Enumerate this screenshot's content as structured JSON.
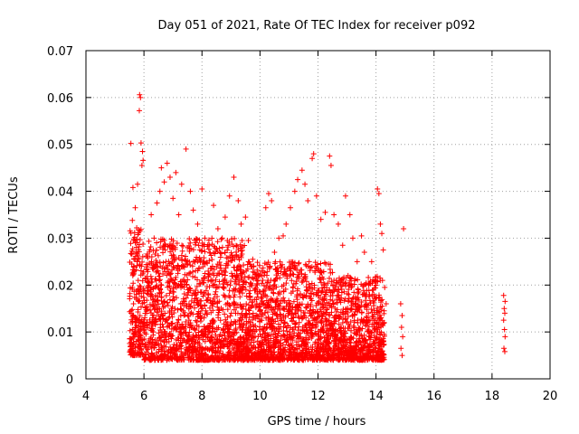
{
  "chart_data": {
    "type": "scatter",
    "title": "Day 051 of 2021, Rate Of TEC Index for receiver p092",
    "xlabel": "GPS time / hours",
    "ylabel": "ROTI / TECUs",
    "xlim": [
      4,
      20
    ],
    "ylim": [
      0,
      0.07
    ],
    "x_ticks": [
      4,
      6,
      8,
      10,
      12,
      14,
      16,
      18,
      20
    ],
    "x_tick_labels": [
      "4",
      "6",
      "8",
      "10",
      "12",
      "14",
      "16",
      "18",
      "20"
    ],
    "y_ticks": [
      0,
      0.01,
      0.02,
      0.03,
      0.04,
      0.05,
      0.06,
      0.07
    ],
    "y_tick_labels": [
      "0",
      "0.01",
      "0.02",
      "0.03",
      "0.04",
      "0.05",
      "0.06",
      "0.07"
    ],
    "grid": true,
    "grid_style": "dotted",
    "marker": "+",
    "marker_color": "#ff0000",
    "series": [
      {
        "name": "ROTI",
        "points": [
          [
            5.55,
            0.0502
          ],
          [
            5.85,
            0.0606
          ],
          [
            5.88,
            0.06
          ],
          [
            5.84,
            0.0572
          ],
          [
            5.9,
            0.0503
          ],
          [
            5.95,
            0.0485
          ],
          [
            5.97,
            0.0466
          ],
          [
            5.93,
            0.0455
          ],
          [
            5.78,
            0.0415
          ],
          [
            5.62,
            0.0408
          ],
          [
            5.7,
            0.0365
          ],
          [
            5.6,
            0.0338
          ],
          [
            5.75,
            0.0322
          ],
          [
            5.65,
            0.0295
          ],
          [
            5.72,
            0.027
          ],
          [
            5.58,
            0.0245
          ],
          [
            5.68,
            0.023
          ],
          [
            5.8,
            0.021
          ],
          [
            5.6,
            0.0195
          ],
          [
            5.74,
            0.018
          ],
          [
            5.64,
            0.016
          ],
          [
            5.56,
            0.0145
          ],
          [
            5.7,
            0.013
          ],
          [
            5.82,
            0.012
          ],
          [
            5.6,
            0.0105
          ],
          [
            5.66,
            0.009
          ],
          [
            5.74,
            0.008
          ],
          [
            5.58,
            0.0065
          ],
          [
            5.62,
            0.005
          ],
          [
            5.7,
            0.006
          ],
          [
            6.05,
            0.0215
          ],
          [
            6.15,
            0.018
          ],
          [
            6.25,
            0.035
          ],
          [
            6.35,
            0.03
          ],
          [
            6.45,
            0.0375
          ],
          [
            6.55,
            0.04
          ],
          [
            6.6,
            0.045
          ],
          [
            6.7,
            0.042
          ],
          [
            6.8,
            0.046
          ],
          [
            6.9,
            0.043
          ],
          [
            7.0,
            0.0385
          ],
          [
            7.1,
            0.044
          ],
          [
            7.2,
            0.035
          ],
          [
            7.3,
            0.0415
          ],
          [
            7.45,
            0.049
          ],
          [
            7.6,
            0.04
          ],
          [
            7.7,
            0.036
          ],
          [
            7.85,
            0.033
          ],
          [
            8.0,
            0.0405
          ],
          [
            8.1,
            0.03
          ],
          [
            8.25,
            0.0285
          ],
          [
            8.4,
            0.037
          ],
          [
            8.55,
            0.032
          ],
          [
            8.7,
            0.03
          ],
          [
            8.8,
            0.0345
          ],
          [
            8.95,
            0.039
          ],
          [
            9.1,
            0.043
          ],
          [
            9.25,
            0.038
          ],
          [
            9.35,
            0.033
          ],
          [
            9.5,
            0.0345
          ],
          [
            9.6,
            0.0295
          ],
          [
            9.75,
            0.0255
          ],
          [
            9.9,
            0.021
          ],
          [
            10.05,
            0.023
          ],
          [
            10.2,
            0.0365
          ],
          [
            10.3,
            0.0395
          ],
          [
            10.4,
            0.038
          ],
          [
            10.5,
            0.027
          ],
          [
            10.65,
            0.03
          ],
          [
            10.8,
            0.0305
          ],
          [
            10.9,
            0.033
          ],
          [
            11.05,
            0.0365
          ],
          [
            11.2,
            0.04
          ],
          [
            11.3,
            0.0425
          ],
          [
            11.45,
            0.0445
          ],
          [
            11.55,
            0.0415
          ],
          [
            11.65,
            0.038
          ],
          [
            11.8,
            0.047
          ],
          [
            11.85,
            0.048
          ],
          [
            11.95,
            0.039
          ],
          [
            12.1,
            0.034
          ],
          [
            12.25,
            0.0355
          ],
          [
            12.4,
            0.0475
          ],
          [
            12.45,
            0.0455
          ],
          [
            12.55,
            0.035
          ],
          [
            12.7,
            0.033
          ],
          [
            12.85,
            0.0285
          ],
          [
            12.95,
            0.039
          ],
          [
            13.1,
            0.035
          ],
          [
            13.2,
            0.03
          ],
          [
            13.35,
            0.025
          ],
          [
            13.5,
            0.0305
          ],
          [
            13.6,
            0.027
          ],
          [
            13.75,
            0.02
          ],
          [
            13.85,
            0.025
          ],
          [
            14.05,
            0.0405
          ],
          [
            14.1,
            0.0395
          ],
          [
            14.15,
            0.033
          ],
          [
            14.2,
            0.031
          ],
          [
            14.25,
            0.0275
          ],
          [
            14.3,
            0.0195
          ],
          [
            14.35,
            0.016
          ],
          [
            14.28,
            0.012
          ],
          [
            14.22,
            0.008
          ],
          [
            14.85,
            0.016
          ],
          [
            14.9,
            0.0135
          ],
          [
            14.88,
            0.011
          ],
          [
            14.92,
            0.009
          ],
          [
            14.86,
            0.0065
          ],
          [
            14.9,
            0.005
          ],
          [
            14.95,
            0.032
          ],
          [
            18.4,
            0.0178
          ],
          [
            18.45,
            0.0165
          ],
          [
            18.42,
            0.015
          ],
          [
            18.44,
            0.014
          ],
          [
            18.4,
            0.0125
          ],
          [
            18.43,
            0.0105
          ],
          [
            18.45,
            0.009
          ],
          [
            18.41,
            0.0065
          ],
          [
            18.44,
            0.0058
          ]
        ],
        "dense_regions": [
          {
            "x_range": [
              5.5,
              6.0
            ],
            "y_range": [
              0.005,
              0.032
            ],
            "density": "high"
          },
          {
            "x_range": [
              6.0,
              9.5
            ],
            "y_range": [
              0.004,
              0.03
            ],
            "density": "high"
          },
          {
            "x_range": [
              9.5,
              12.5
            ],
            "y_range": [
              0.004,
              0.025
            ],
            "density": "high"
          },
          {
            "x_range": [
              12.5,
              14.3
            ],
            "y_range": [
              0.004,
              0.022
            ],
            "density": "high"
          }
        ]
      }
    ]
  }
}
